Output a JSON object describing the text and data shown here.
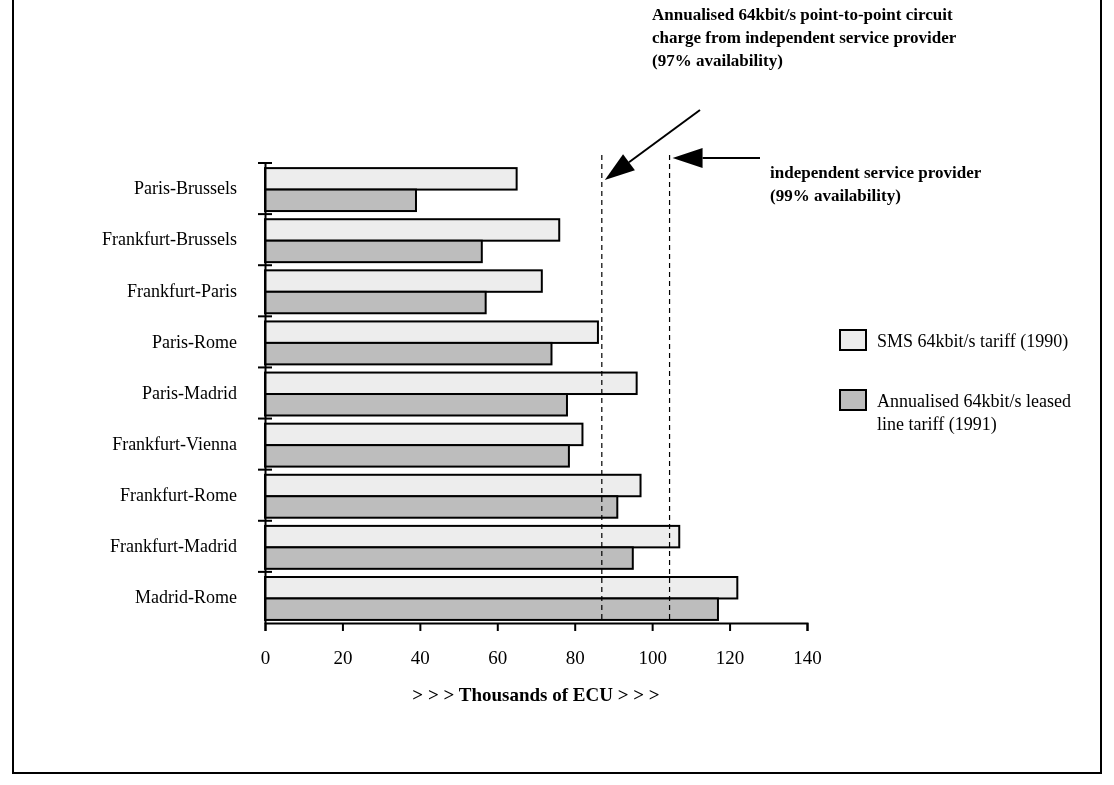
{
  "chart_data": {
    "type": "bar",
    "orientation": "horizontal",
    "categories": [
      "Paris-Brussels",
      "Frankfurt-Brussels",
      "Frankfurt-Paris",
      "Paris-Rome",
      "Paris-Madrid",
      "Frankfurt-Vienna",
      "Frankfurt-Rome",
      "Frankfurt-Madrid",
      "Madrid-Rome"
    ],
    "series": [
      {
        "name": "SMS 64kbit/s tariff (1990)",
        "color": "#ededed",
        "values": [
          65,
          76,
          71.5,
          86,
          96,
          82,
          97,
          107,
          122
        ]
      },
      {
        "name": "Annualised 64kbit/s leased line tariff (1991)",
        "color": "#bdbdbd",
        "values": [
          39,
          56,
          57,
          74,
          78,
          78.5,
          91,
          95,
          117
        ]
      }
    ],
    "xlim": [
      0,
      140
    ],
    "xticks": [
      0,
      20,
      40,
      60,
      80,
      100,
      120,
      140
    ],
    "xlabel": "> > >  Thousands of ECU  > > >",
    "legend": "right",
    "grid": false,
    "ref_lines": [
      {
        "axis": "x",
        "value": 87,
        "line_style": "dashed"
      },
      {
        "axis": "x",
        "value": 104.5,
        "line_style": "dashed"
      }
    ],
    "annotations": [
      "Annualised 64kbit/s point-to-point circuit charge from independent service provider (97% availability)",
      "independent service provider (99% availability)"
    ]
  }
}
